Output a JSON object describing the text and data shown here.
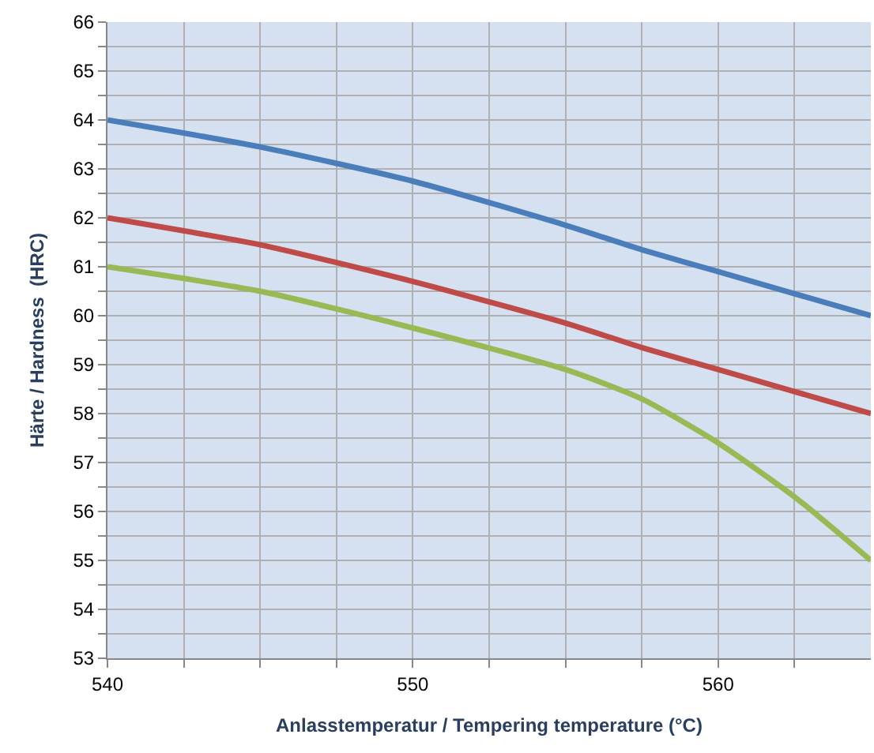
{
  "chart_data": {
    "type": "line",
    "xlabel": "Anlasstemperatur / Tempering temperature (°C)",
    "ylabel": "Härte / Hardness  (HRC)",
    "x": [
      540,
      545,
      550,
      555,
      557.5,
      560,
      562.5,
      565
    ],
    "series": [
      {
        "color": "#4a7ebb",
        "values": [
          64,
          63.45,
          62.75,
          61.85,
          61.35,
          60.9,
          60.45,
          60
        ]
      },
      {
        "color": "#be4b48",
        "values": [
          62,
          61.45,
          60.7,
          59.85,
          59.35,
          58.9,
          58.45,
          58
        ]
      },
      {
        "color": "#98b954",
        "values": [
          61,
          60.5,
          59.75,
          58.9,
          58.3,
          57.4,
          56.3,
          55
        ]
      }
    ],
    "xlim": [
      540,
      565
    ],
    "xticks": [
      540,
      {
        "value": 542.5,
        "label": null
      },
      {
        "value": 545,
        "label": null
      },
      {
        "value": 547.5,
        "label": null
      },
      550,
      {
        "value": 552.5,
        "label": null
      },
      {
        "value": 555,
        "label": null
      },
      {
        "value": 557.5,
        "label": null
      },
      560,
      {
        "value": 562.5,
        "label": null
      }
    ],
    "ylim": [
      53,
      66
    ],
    "yticks": [
      53,
      {
        "value": 53.5,
        "label": null
      },
      54,
      {
        "value": 54.5,
        "label": null
      },
      55,
      {
        "value": 55.5,
        "label": null
      },
      56,
      {
        "value": 56.5,
        "label": null
      },
      57,
      {
        "value": 57.5,
        "label": null
      },
      58,
      {
        "value": 58.5,
        "label": null
      },
      59,
      {
        "value": 59.5,
        "label": null
      },
      60,
      {
        "value": 60.5,
        "label": null
      },
      61,
      {
        "value": 61.5,
        "label": null
      },
      62,
      {
        "value": 62.5,
        "label": null
      },
      63,
      {
        "value": 63.5,
        "label": null
      },
      64,
      {
        "value": 64.5,
        "label": null
      },
      65,
      {
        "value": 65.5,
        "label": null
      },
      66
    ],
    "grid": true,
    "marker": "none",
    "line_style": "solid"
  }
}
